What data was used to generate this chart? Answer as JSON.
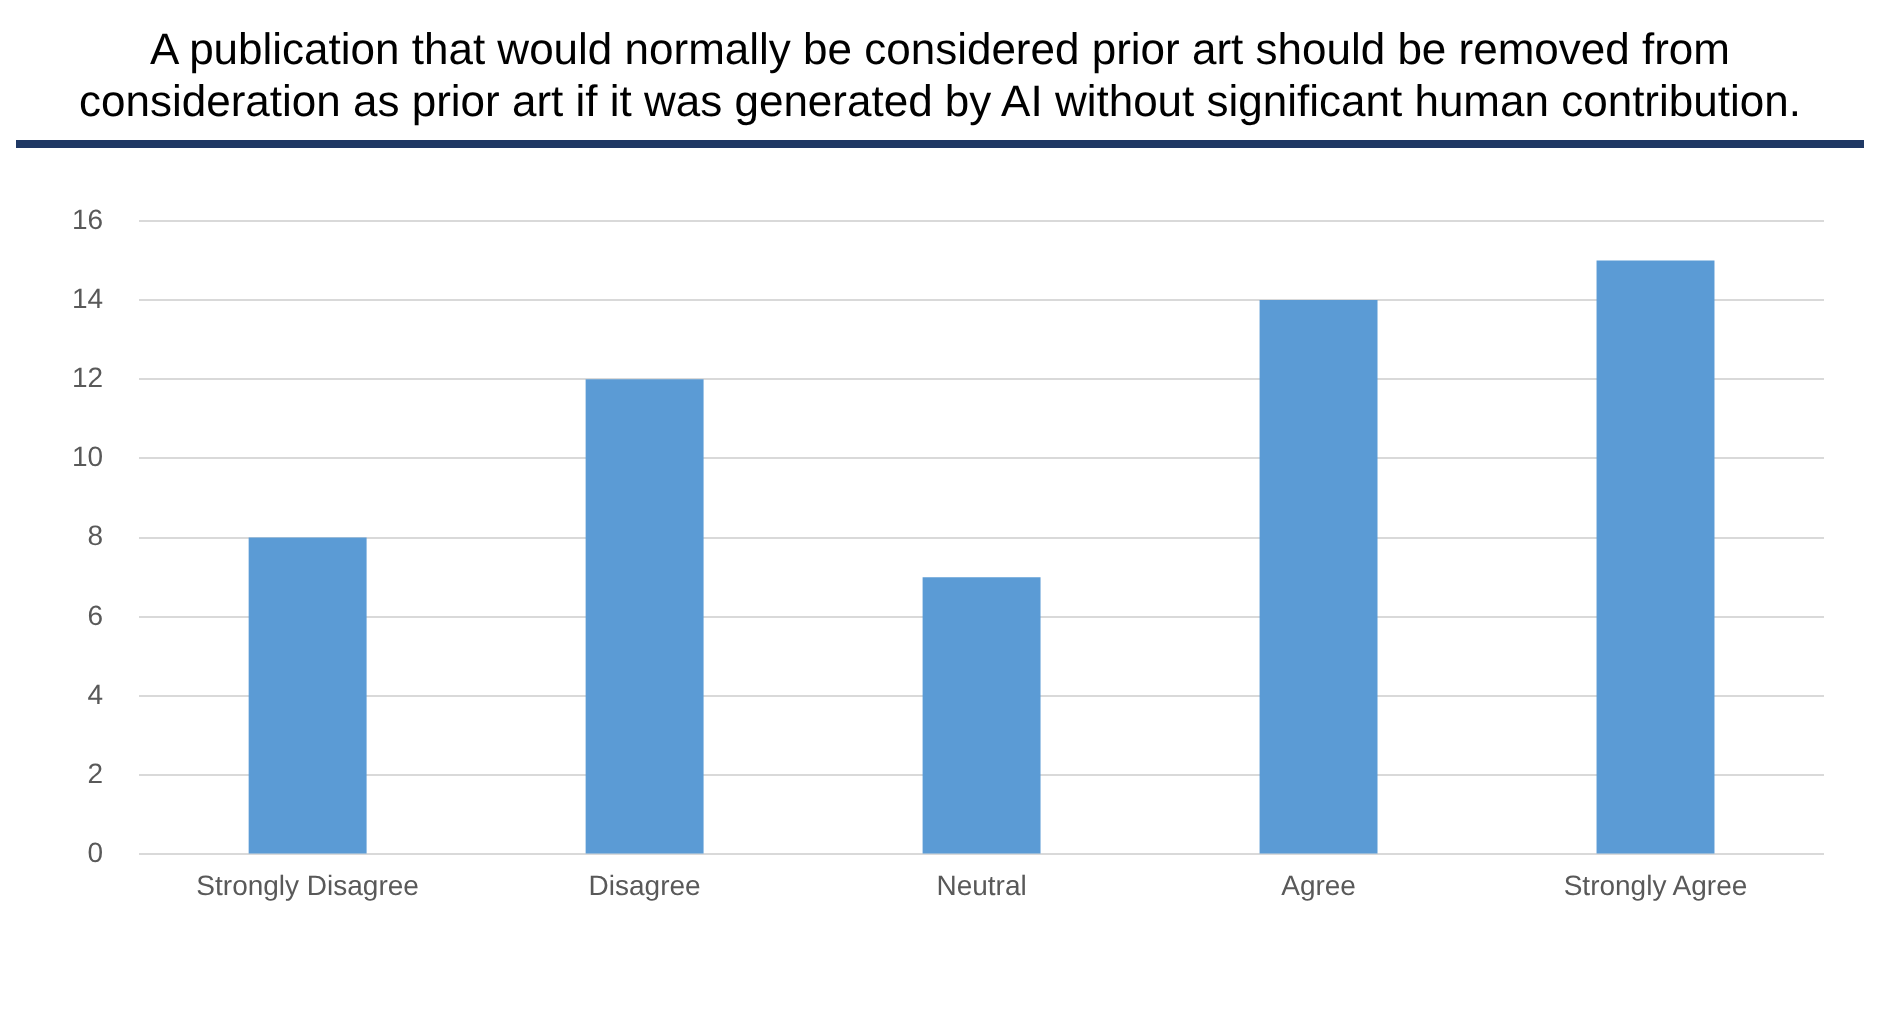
{
  "chart_data": {
    "type": "bar",
    "title": "A publication that would normally be considered prior art should be removed from consideration as prior art if it was generated by AI without significant human contribution.",
    "categories": [
      "Strongly Disagree",
      "Disagree",
      "Neutral",
      "Agree",
      "Strongly Agree"
    ],
    "values": [
      8,
      12,
      7,
      14,
      15
    ],
    "color": "#5b9bd5",
    "ylim": [
      0,
      16
    ],
    "yticks": [
      0,
      2,
      4,
      6,
      8,
      10,
      12,
      14,
      16
    ],
    "grid": "y",
    "legend": false
  }
}
